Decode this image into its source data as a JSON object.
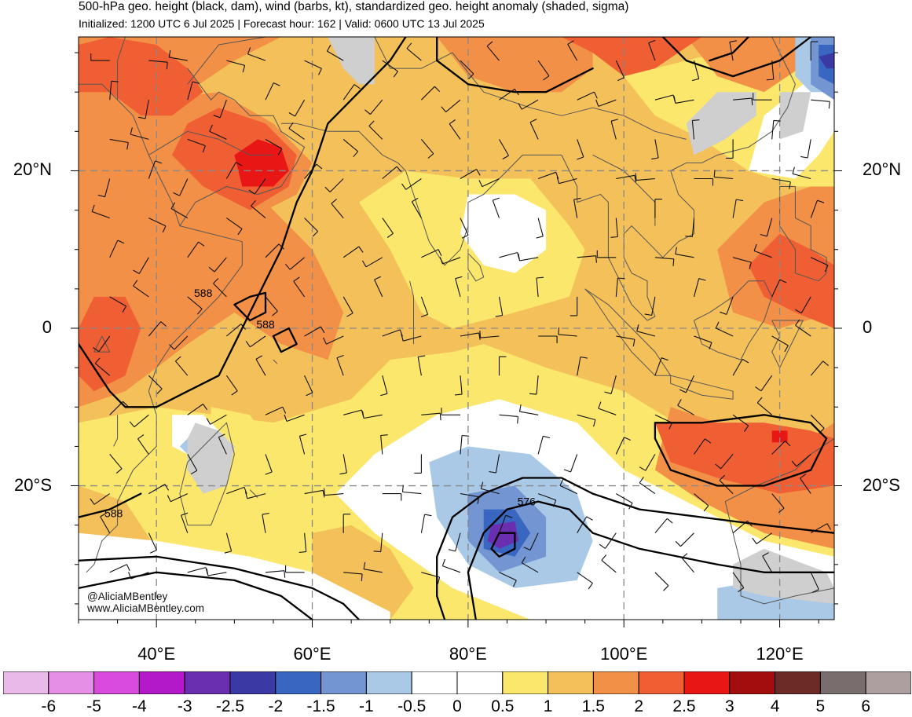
{
  "title": {
    "line1": "500-hPa geo. height (black, dam), wind (barbs, kt), standardized geo. height anomaly (shaded, sigma)",
    "line2": "Initialized: 1200 UTC 6 Jul 2025 | Forecast hour: 162 | Valid: 0600 UTC 13 Jul 2025"
  },
  "credit": {
    "handle": "@AliciaMBentley",
    "site": "www.AliciaMBentley.com"
  },
  "lat_labels": [
    {
      "text": "20°N",
      "lat": 20
    },
    {
      "text": "0",
      "lat": 0
    },
    {
      "text": "20°S",
      "lat": -20
    }
  ],
  "lon_labels": [
    {
      "text": "40°E",
      "lon": 40
    },
    {
      "text": "60°E",
      "lon": 60
    },
    {
      "text": "80°E",
      "lon": 80
    },
    {
      "text": "100°E",
      "lon": 100
    },
    {
      "text": "120°E",
      "lon": 120
    }
  ],
  "contour_labels": [
    {
      "text": "588",
      "lon": 46,
      "lat": 4
    },
    {
      "text": "588",
      "lon": 54,
      "lat": 0
    },
    {
      "text": "588",
      "lon": 34.5,
      "lat": -24
    },
    {
      "text": "576",
      "lon": 87.5,
      "lat": -22.5
    }
  ],
  "colorbar": {
    "ticks": [
      "-6",
      "-5",
      "-4",
      "-3",
      "-2.5",
      "-2",
      "-1.5",
      "-1",
      "-0.5",
      "0",
      "0.5",
      "1",
      "1.5",
      "2",
      "2.5",
      "3",
      "4",
      "5",
      "6"
    ],
    "colors": [
      "#e9b9e9",
      "#e58fe6",
      "#d94bdd",
      "#b419c9",
      "#6a2fb1",
      "#3b39a3",
      "#3966c1",
      "#7395d1",
      "#a9c9e7",
      "#ffffff",
      "#ffffff",
      "#fbe76c",
      "#f4c059",
      "#f39047",
      "#f05f33",
      "#e91616",
      "#a40d0d",
      "#6c2b27",
      "#7a6d6d",
      "#ad9f9f"
    ]
  },
  "map": {
    "lon_range": [
      30,
      127
    ],
    "lat_range": [
      -37,
      37
    ],
    "colors": {
      "very_light": "#fbe76c",
      "light": "#f4c059",
      "medium": "#f39047",
      "strong": "#f05f33",
      "extreme": "#e91616",
      "neutral": "#ffffff",
      "neg_weak": "#a9c9e7",
      "neg_mod": "#7395d1",
      "neg_strong": "#3966c1",
      "neg_deep": "#3b39a3",
      "neg_max": "#6a2fb1",
      "land_gray": "#cfcfcf"
    }
  }
}
